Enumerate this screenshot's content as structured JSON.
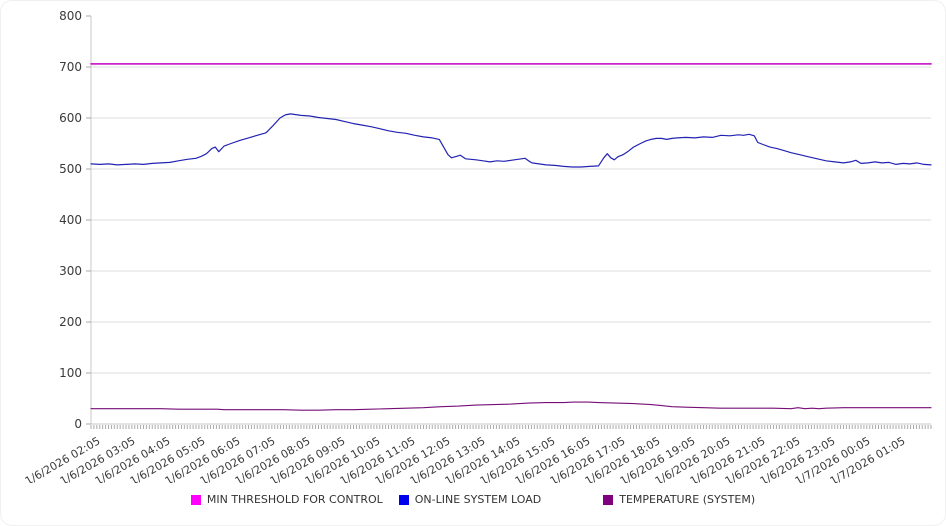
{
  "panel": {
    "background_color": "#FFFFFF",
    "border_color": "#F0F0F0"
  },
  "chart_data": {
    "type": "line",
    "title": "",
    "xlabel": "",
    "ylabel": "",
    "ylim": [
      0,
      800
    ],
    "y_ticks": [
      0,
      100,
      200,
      300,
      400,
      500,
      600,
      700,
      800
    ],
    "x_hours_span": 24,
    "x_minor_tick_minutes": 5,
    "grid": true,
    "legend_position": "bottom",
    "axis": {
      "text_color": "#3A3A3A",
      "grid_color": "#DDDDDD",
      "axis_color": "#C8C8C8",
      "tick_color": "#AAAAAA"
    },
    "x_labels": [
      "1/6/2026 02:05",
      "1/6/2026 03:05",
      "1/6/2026 04:05",
      "1/6/2026 05:05",
      "1/6/2026 06:05",
      "1/6/2026 07:05",
      "1/6/2026 08:05",
      "1/6/2026 09:05",
      "1/6/2026 10:05",
      "1/6/2026 11:05",
      "1/6/2026 12:05",
      "1/6/2026 13:05",
      "1/6/2026 14:05",
      "1/6/2026 15:05",
      "1/6/2026 16:05",
      "1/6/2026 17:05",
      "1/6/2026 18:05",
      "1/6/2026 19:05",
      "1/6/2026 20:05",
      "1/6/2026 21:05",
      "1/6/2026 22:05",
      "1/6/2026 23:05",
      "1/7/2026 00:05",
      "1/7/2026 01:05"
    ],
    "series": [
      {
        "name": "MIN THRESHOLD FOR CONTROL",
        "legend_color": "#FF00FF",
        "line_color": "#CC22CC",
        "line_width": 1.8,
        "points": [
          [
            0,
            706
          ],
          [
            24,
            706
          ]
        ]
      },
      {
        "name": "ON-LINE SYSTEM LOAD",
        "legend_color": "#0000EE",
        "line_color": "#2323B3",
        "line_width": 1.2,
        "points": [
          [
            0,
            510
          ],
          [
            0.25,
            509
          ],
          [
            0.5,
            510
          ],
          [
            0.75,
            508
          ],
          [
            1,
            509
          ],
          [
            1.25,
            510
          ],
          [
            1.5,
            509
          ],
          [
            1.75,
            511
          ],
          [
            2,
            512
          ],
          [
            2.25,
            513
          ],
          [
            2.5,
            516
          ],
          [
            2.75,
            519
          ],
          [
            3,
            521
          ],
          [
            3.15,
            525
          ],
          [
            3.3,
            530
          ],
          [
            3.45,
            540
          ],
          [
            3.55,
            543
          ],
          [
            3.65,
            534
          ],
          [
            3.8,
            545
          ],
          [
            4,
            550
          ],
          [
            4.25,
            556
          ],
          [
            4.5,
            561
          ],
          [
            4.75,
            566
          ],
          [
            5,
            571
          ],
          [
            5.2,
            585
          ],
          [
            5.4,
            600
          ],
          [
            5.55,
            606
          ],
          [
            5.7,
            608
          ],
          [
            5.9,
            606
          ],
          [
            6,
            605
          ],
          [
            6.25,
            604
          ],
          [
            6.5,
            601
          ],
          [
            6.75,
            599
          ],
          [
            7,
            597
          ],
          [
            7.25,
            593
          ],
          [
            7.5,
            589
          ],
          [
            7.75,
            586
          ],
          [
            8,
            583
          ],
          [
            8.25,
            579
          ],
          [
            8.5,
            575
          ],
          [
            8.75,
            572
          ],
          [
            9,
            570
          ],
          [
            9.25,
            566
          ],
          [
            9.5,
            563
          ],
          [
            9.75,
            561
          ],
          [
            9.95,
            558
          ],
          [
            10.1,
            540
          ],
          [
            10.2,
            528
          ],
          [
            10.3,
            522
          ],
          [
            10.45,
            525
          ],
          [
            10.55,
            527
          ],
          [
            10.7,
            520
          ],
          [
            10.85,
            519
          ],
          [
            11,
            518
          ],
          [
            11.2,
            516
          ],
          [
            11.4,
            514
          ],
          [
            11.6,
            516
          ],
          [
            11.8,
            515
          ],
          [
            12,
            517
          ],
          [
            12.2,
            519
          ],
          [
            12.4,
            521
          ],
          [
            12.5,
            516
          ],
          [
            12.6,
            512
          ],
          [
            12.8,
            510
          ],
          [
            13,
            508
          ],
          [
            13.25,
            507
          ],
          [
            13.5,
            505
          ],
          [
            13.75,
            504
          ],
          [
            14,
            504
          ],
          [
            14.25,
            505
          ],
          [
            14.5,
            506
          ],
          [
            14.65,
            522
          ],
          [
            14.75,
            530
          ],
          [
            14.85,
            522
          ],
          [
            14.95,
            518
          ],
          [
            15.05,
            524
          ],
          [
            15.2,
            528
          ],
          [
            15.35,
            535
          ],
          [
            15.5,
            543
          ],
          [
            15.7,
            550
          ],
          [
            15.85,
            555
          ],
          [
            16,
            558
          ],
          [
            16.15,
            560
          ],
          [
            16.3,
            560
          ],
          [
            16.45,
            558
          ],
          [
            16.6,
            560
          ],
          [
            16.75,
            561
          ],
          [
            17,
            562
          ],
          [
            17.25,
            561
          ],
          [
            17.5,
            563
          ],
          [
            17.75,
            562
          ],
          [
            18,
            566
          ],
          [
            18.25,
            565
          ],
          [
            18.5,
            567
          ],
          [
            18.65,
            566
          ],
          [
            18.8,
            568
          ],
          [
            18.95,
            565
          ],
          [
            19.05,
            552
          ],
          [
            19.2,
            548
          ],
          [
            19.4,
            543
          ],
          [
            19.6,
            540
          ],
          [
            19.8,
            536
          ],
          [
            20,
            532
          ],
          [
            20.25,
            528
          ],
          [
            20.5,
            524
          ],
          [
            20.75,
            520
          ],
          [
            21,
            516
          ],
          [
            21.25,
            514
          ],
          [
            21.5,
            512
          ],
          [
            21.7,
            514
          ],
          [
            21.85,
            517
          ],
          [
            22,
            511
          ],
          [
            22.2,
            512
          ],
          [
            22.4,
            514
          ],
          [
            22.6,
            512
          ],
          [
            22.8,
            513
          ],
          [
            23,
            509
          ],
          [
            23.2,
            511
          ],
          [
            23.4,
            510
          ],
          [
            23.6,
            512
          ],
          [
            23.8,
            509
          ],
          [
            24,
            508
          ]
        ]
      },
      {
        "name": "TEMPERATURE (SYSTEM)",
        "legend_color": "#800080",
        "line_color": "#770E77",
        "line_width": 1.1,
        "points": [
          [
            0,
            30
          ],
          [
            0.5,
            30
          ],
          [
            1,
            30
          ],
          [
            1.5,
            30
          ],
          [
            2,
            30
          ],
          [
            2.5,
            29
          ],
          [
            3,
            29
          ],
          [
            3.6,
            29
          ],
          [
            3.8,
            28
          ],
          [
            4.5,
            28
          ],
          [
            5,
            28
          ],
          [
            5.5,
            28
          ],
          [
            6,
            27
          ],
          [
            6.5,
            27
          ],
          [
            7,
            28
          ],
          [
            7.5,
            28
          ],
          [
            8,
            29
          ],
          [
            8.5,
            30
          ],
          [
            9,
            31
          ],
          [
            9.5,
            32
          ],
          [
            10,
            34
          ],
          [
            10.5,
            35
          ],
          [
            11,
            37
          ],
          [
            11.5,
            38
          ],
          [
            12,
            39
          ],
          [
            12.5,
            41
          ],
          [
            13,
            42
          ],
          [
            13.5,
            42
          ],
          [
            13.8,
            43
          ],
          [
            14.2,
            43
          ],
          [
            14.5,
            42
          ],
          [
            15,
            41
          ],
          [
            15.5,
            40
          ],
          [
            16,
            38
          ],
          [
            16.3,
            36
          ],
          [
            16.6,
            34
          ],
          [
            17,
            33
          ],
          [
            17.5,
            32
          ],
          [
            18,
            31
          ],
          [
            18.5,
            31
          ],
          [
            19,
            31
          ],
          [
            19.5,
            31
          ],
          [
            20,
            30
          ],
          [
            20.2,
            32
          ],
          [
            20.4,
            30
          ],
          [
            20.6,
            31
          ],
          [
            20.8,
            30
          ],
          [
            21,
            31
          ],
          [
            21.5,
            32
          ],
          [
            22,
            32
          ],
          [
            22.5,
            32
          ],
          [
            23,
            32
          ],
          [
            23.5,
            32
          ],
          [
            24,
            32
          ]
        ]
      }
    ]
  }
}
